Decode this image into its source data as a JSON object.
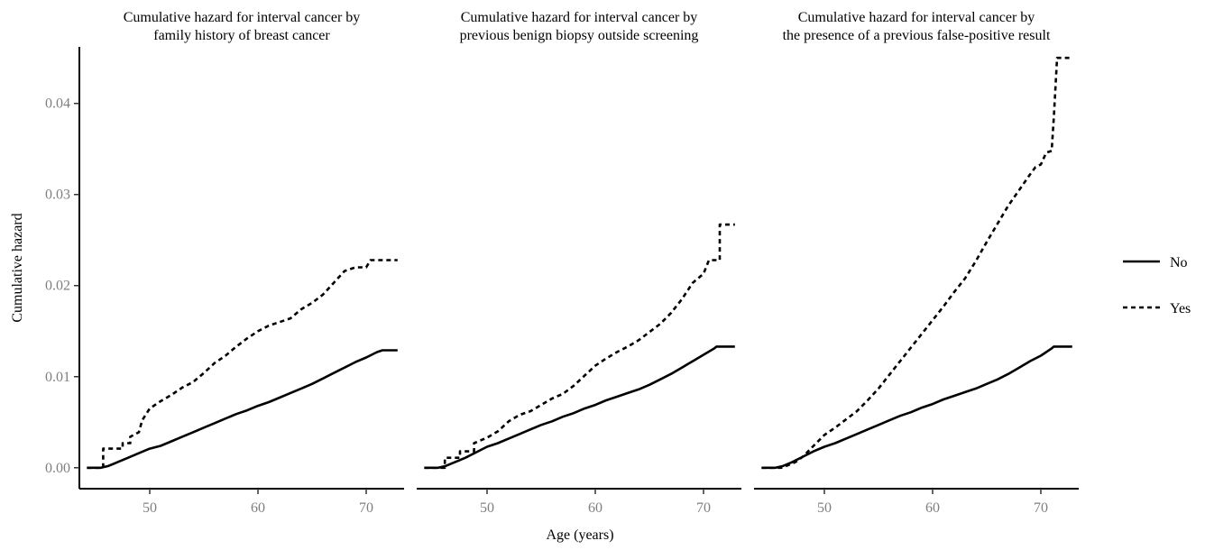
{
  "chart_data": {
    "type": "line",
    "xlabel": "Age (years)",
    "ylabel": "Cumulative hazard",
    "xlim": [
      43.5,
      73.5
    ],
    "ylim": [
      -0.0023,
      0.0472
    ],
    "x_ticks": [
      50,
      60,
      70
    ],
    "x_tick_labels": [
      "50",
      "60",
      "70"
    ],
    "y_ticks": [
      0,
      0.01,
      0.02,
      0.03,
      0.04
    ],
    "y_tick_labels": [
      "0.00",
      "0.01",
      "0.02",
      "0.03",
      "0.04"
    ],
    "grid": false,
    "legend": {
      "placement": "right",
      "entries": [
        {
          "label": "No",
          "style": "solid"
        },
        {
          "label": "Yes",
          "style": "dashed"
        }
      ]
    },
    "panels": [
      {
        "title_lines": [
          "Cumulative hazard for interval cancer by",
          "family history of breast cancer"
        ],
        "series": [
          {
            "name": "No",
            "style": "solid",
            "x": [
              44.2,
              45.5,
              46.2,
              47.0,
              48.0,
              49.0,
              50.0,
              51.0,
              52.0,
              53.0,
              54.0,
              55.0,
              56.0,
              57.0,
              58.0,
              59.0,
              60.0,
              61.0,
              62.0,
              63.0,
              64.0,
              65.0,
              66.0,
              67.0,
              68.0,
              69.0,
              70.0,
              71.0,
              71.5,
              72.9
            ],
            "y": [
              0,
              0,
              0.0002,
              0.0006,
              0.0011,
              0.0016,
              0.0021,
              0.0024,
              0.0029,
              0.0034,
              0.0039,
              0.0044,
              0.0049,
              0.0054,
              0.0059,
              0.0063,
              0.0068,
              0.0072,
              0.0077,
              0.0082,
              0.0087,
              0.0092,
              0.0098,
              0.0104,
              0.011,
              0.0116,
              0.0121,
              0.0127,
              0.0129,
              0.0129
            ]
          },
          {
            "name": "Yes",
            "style": "dashed",
            "x": [
              44.2,
              45.7,
              45.7,
              47.5,
              47.5,
              48.2,
              48.2,
              49.0,
              49.3,
              50.0,
              51.0,
              52.0,
              53.0,
              54.0,
              55.0,
              56.0,
              57.0,
              58.0,
              59.0,
              60.0,
              61.0,
              62.0,
              63.0,
              64.0,
              65.0,
              66.0,
              67.0,
              68.0,
              69.0,
              70.0,
              70.4,
              72.9
            ],
            "y": [
              0,
              0,
              0.0021,
              0.0021,
              0.0027,
              0.0027,
              0.0034,
              0.0039,
              0.0052,
              0.0065,
              0.0073,
              0.008,
              0.0088,
              0.0094,
              0.0104,
              0.0115,
              0.0123,
              0.0133,
              0.0142,
              0.015,
              0.0156,
              0.016,
              0.0164,
              0.0174,
              0.0181,
              0.019,
              0.0203,
              0.0216,
              0.022,
              0.022,
              0.0228,
              0.0228
            ]
          }
        ]
      },
      {
        "title_lines": [
          "Cumulative hazard for interval cancer by",
          "previous benign biopsy outside screening"
        ],
        "series": [
          {
            "name": "No",
            "style": "solid",
            "x": [
              44.2,
              45.5,
              46.2,
              47.0,
              48.0,
              49.0,
              50.0,
              51.0,
              52.0,
              53.0,
              54.0,
              55.0,
              56.0,
              57.0,
              58.0,
              59.0,
              60.0,
              61.0,
              62.0,
              63.0,
              64.0,
              65.0,
              66.0,
              67.0,
              68.0,
              69.0,
              70.0,
              71.0,
              71.2,
              72.9
            ],
            "y": [
              0,
              0,
              0.0002,
              0.0006,
              0.0011,
              0.0017,
              0.0023,
              0.0027,
              0.0032,
              0.0037,
              0.0042,
              0.0047,
              0.0051,
              0.0056,
              0.006,
              0.0065,
              0.0069,
              0.0074,
              0.0078,
              0.0082,
              0.0086,
              0.0091,
              0.0097,
              0.0103,
              0.011,
              0.0117,
              0.0124,
              0.0131,
              0.0133,
              0.0133
            ]
          },
          {
            "name": "Yes",
            "style": "dashed",
            "x": [
              44.2,
              46.1,
              46.1,
              47.5,
              47.5,
              48.8,
              48.8,
              50.0,
              51.0,
              52.0,
              53.0,
              54.0,
              55.0,
              56.0,
              57.0,
              58.0,
              59.0,
              60.0,
              61.0,
              62.0,
              63.0,
              64.0,
              65.0,
              66.0,
              67.0,
              68.0,
              69.0,
              70.0,
              70.5,
              71.5,
              71.5,
              72.9
            ],
            "y": [
              0,
              0,
              0.0011,
              0.0011,
              0.0018,
              0.0018,
              0.0027,
              0.0033,
              0.004,
              0.0051,
              0.0058,
              0.0062,
              0.0069,
              0.0076,
              0.0081,
              0.009,
              0.0101,
              0.0112,
              0.012,
              0.0127,
              0.0133,
              0.014,
              0.0149,
              0.0158,
              0.017,
              0.0185,
              0.0203,
              0.0213,
              0.0228,
              0.0228,
              0.0267,
              0.0267
            ]
          }
        ]
      },
      {
        "title_lines": [
          "Cumulative hazard for interval cancer by",
          "the presence of a previous false-positive result"
        ],
        "series": [
          {
            "name": "No",
            "style": "solid",
            "x": [
              44.2,
              45.5,
              46.2,
              47.0,
              48.0,
              49.0,
              50.0,
              51.0,
              52.0,
              53.0,
              54.0,
              55.0,
              56.0,
              57.0,
              58.0,
              59.0,
              60.0,
              61.0,
              62.0,
              63.0,
              64.0,
              65.0,
              66.0,
              67.0,
              68.0,
              69.0,
              70.0,
              71.0,
              71.2,
              72.9
            ],
            "y": [
              0,
              0,
              0.0002,
              0.0006,
              0.0012,
              0.0018,
              0.0023,
              0.0027,
              0.0032,
              0.0037,
              0.0042,
              0.0047,
              0.0052,
              0.0057,
              0.0061,
              0.0066,
              0.007,
              0.0075,
              0.0079,
              0.0083,
              0.0087,
              0.0092,
              0.0097,
              0.0103,
              0.011,
              0.0117,
              0.0123,
              0.0131,
              0.0133,
              0.0133
            ]
          },
          {
            "name": "Yes",
            "style": "dashed",
            "x": [
              44.2,
              46.0,
              46.5,
              47.3,
              48.0,
              49.0,
              50.0,
              51.0,
              52.0,
              53.0,
              54.0,
              55.0,
              56.0,
              57.0,
              58.0,
              59.0,
              60.0,
              61.0,
              62.0,
              63.0,
              64.0,
              65.0,
              66.0,
              67.0,
              68.0,
              69.0,
              69.5,
              70.0,
              70.5,
              71.0,
              71.2,
              71.5,
              72.9
            ],
            "y": [
              0,
              0,
              0.0002,
              0.0006,
              0.0012,
              0.0024,
              0.0036,
              0.0044,
              0.0053,
              0.0062,
              0.0074,
              0.0087,
              0.0102,
              0.0117,
              0.0132,
              0.0147,
              0.0162,
              0.0177,
              0.0193,
              0.0208,
              0.0227,
              0.0248,
              0.0268,
              0.0288,
              0.0305,
              0.0322,
              0.033,
              0.0333,
              0.0346,
              0.0348,
              0.0385,
              0.045,
              0.045
            ]
          }
        ]
      }
    ]
  }
}
